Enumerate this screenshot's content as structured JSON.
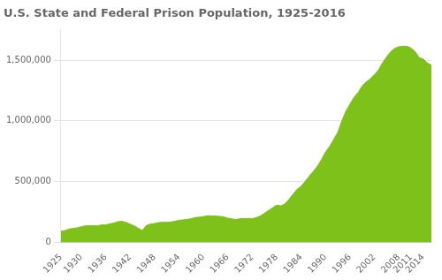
{
  "chart_data": {
    "type": "area",
    "title": "U.S. State and Federal Prison Population, 1925-2016",
    "color": "#7dc11a",
    "x": [
      1925,
      1926,
      1927,
      1928,
      1929,
      1930,
      1931,
      1932,
      1933,
      1934,
      1935,
      1936,
      1937,
      1938,
      1939,
      1940,
      1941,
      1942,
      1943,
      1944,
      1945,
      1946,
      1947,
      1948,
      1949,
      1950,
      1951,
      1952,
      1953,
      1954,
      1955,
      1956,
      1957,
      1958,
      1959,
      1960,
      1961,
      1962,
      1963,
      1964,
      1965,
      1966,
      1967,
      1968,
      1969,
      1970,
      1971,
      1972,
      1973,
      1974,
      1975,
      1976,
      1977,
      1978,
      1979,
      1980,
      1981,
      1982,
      1983,
      1984,
      1985,
      1986,
      1987,
      1988,
      1989,
      1990,
      1991,
      1992,
      1993,
      1994,
      1995,
      1996,
      1997,
      1998,
      1999,
      2000,
      2001,
      2002,
      2003,
      2004,
      2005,
      2006,
      2007,
      2008,
      2009,
      2010,
      2011,
      2012,
      2013,
      2014,
      2015,
      2016
    ],
    "values": [
      91669,
      97991,
      109983,
      116390,
      120496,
      129453,
      137082,
      137997,
      136810,
      138316,
      144180,
      145038,
      152741,
      160285,
      170940,
      173706,
      165439,
      150384,
      137220,
      116942,
      98841,
      140079,
      151304,
      155977,
      163749,
      166165,
      165680,
      168233,
      173579,
      182901,
      185780,
      189565,
      195414,
      205265,
      208105,
      212953,
      220149,
      218830,
      217283,
      214336,
      210895,
      200000,
      194896,
      187914,
      196007,
      196429,
      198061,
      196092,
      204211,
      218466,
      240593,
      262833,
      285456,
      307276,
      301470,
      315974,
      353674,
      395516,
      437248,
      461874,
      502507,
      544972,
      585084,
      627402,
      680907,
      743382,
      789610,
      846277,
      904961,
      999808,
      1078978,
      1137722,
      1194029,
      1232900,
      1287172,
      1321137,
      1345217,
      1380516,
      1418677,
      1477764,
      1525910,
      1568674,
      1596835,
      1609917,
      1613740,
      1613856,
      1598783,
      1570397,
      1520002,
      1508636,
      1476847,
      1458173
    ],
    "xlim": [
      1925,
      2016
    ],
    "xticks": [
      1925,
      1930,
      1936,
      1942,
      1948,
      1954,
      1960,
      1966,
      1972,
      1978,
      1984,
      1990,
      1996,
      2002,
      2008,
      2011,
      2014
    ],
    "ylim": [
      0,
      1750000
    ],
    "yticks": [
      0,
      {
        "value": 500000,
        "label": "500,000"
      },
      {
        "value": 1000000,
        "label": "1,000,000"
      },
      {
        "value": 1500000,
        "label": "1,500,000"
      }
    ],
    "grid": true
  }
}
